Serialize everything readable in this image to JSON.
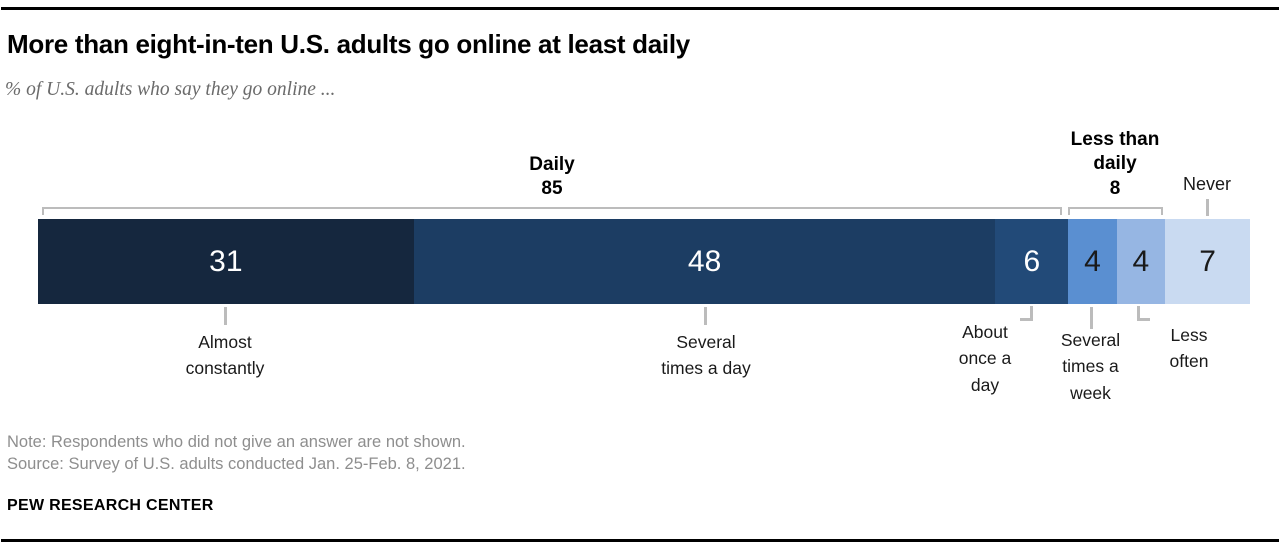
{
  "header": {
    "title": "More than eight-in-ten U.S. adults go online at least daily",
    "subtitle": "% of U.S. adults who say they go online ..."
  },
  "chart_data": {
    "type": "bar",
    "subtype": "horizontal-stacked-100pct",
    "unit": "percent of U.S. adults",
    "segments": [
      {
        "label": "Almost constantly",
        "value": 31,
        "color": "#15273E",
        "text_color": "#ffffff"
      },
      {
        "label": "Several times a day",
        "value": 48,
        "color": "#1C3D63",
        "text_color": "#ffffff"
      },
      {
        "label": "About once a day",
        "value": 6,
        "color": "#224A78",
        "text_color": "#ffffff"
      },
      {
        "label": "Several times a week",
        "value": 4,
        "color": "#5A8FD1",
        "text_color": "#1a1a1a"
      },
      {
        "label": "Less often",
        "value": 4,
        "color": "#96B6E3",
        "text_color": "#1a1a1a"
      },
      {
        "label": "Never",
        "value": 7,
        "color": "#C9DAF1",
        "text_color": "#1a1a1a"
      }
    ],
    "groups": [
      {
        "label": "Daily",
        "value": 85,
        "spans": [
          "Almost constantly",
          "Several times a day",
          "About once a day"
        ]
      },
      {
        "label": "Less than daily",
        "value": 8,
        "spans": [
          "Several times a week",
          "Less often"
        ]
      },
      {
        "label": "Never",
        "value": 7,
        "spans": [
          "Never"
        ]
      }
    ],
    "connector_color": "#bcbcbc",
    "legend_position": "none",
    "grid": false
  },
  "footer": {
    "note": "Note: Respondents who did not give an answer are not shown.",
    "source": "Source: Survey of U.S. adults conducted Jan. 25-Feb. 8, 2021.",
    "brand": "PEW RESEARCH CENTER"
  }
}
